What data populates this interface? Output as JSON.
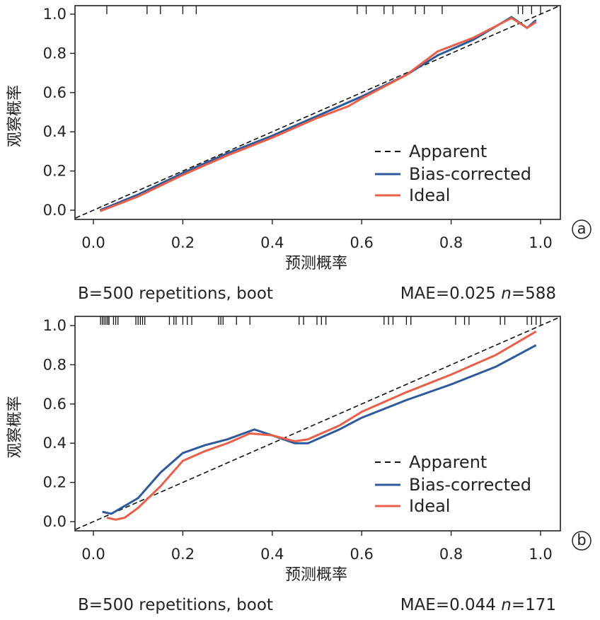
{
  "chart_data": [
    {
      "type": "line",
      "panel_label": "a",
      "xlabel": "预测概率",
      "ylabel": "观察概率",
      "xlim": [
        -0.04,
        1.04
      ],
      "ylim": [
        -0.03,
        1.06
      ],
      "xticks": [
        "0.0",
        "0.2",
        "0.4",
        "0.6",
        "0.8",
        "1.0"
      ],
      "yticks": [
        "0.0",
        "0.2",
        "0.4",
        "0.6",
        "0.8",
        "1.0"
      ],
      "legend": {
        "placement": "lower-right",
        "entries": [
          "Apparent",
          "Bias-corrected",
          "Ideal"
        ]
      },
      "footer_left": "B=500 repetitions, boot",
      "footer_right_prefix": "MAE=0.025 ",
      "footer_right_n": "n",
      "footer_right_suffix": "=588",
      "series": [
        {
          "name": "Apparent",
          "color": "#111111",
          "style": "dashed",
          "x": [
            -0.04,
            1.04
          ],
          "y": [
            -0.04,
            1.04
          ]
        },
        {
          "name": "Bias-corrected",
          "color": "#2e5a9c",
          "x": [
            0.015,
            0.1,
            0.2,
            0.3,
            0.4,
            0.5,
            0.6,
            0.7,
            0.77,
            0.85,
            0.935,
            0.97,
            0.99
          ],
          "y": [
            0.0,
            0.08,
            0.19,
            0.29,
            0.38,
            0.48,
            0.58,
            0.69,
            0.79,
            0.87,
            0.985,
            0.93,
            0.97
          ]
        },
        {
          "name": "Ideal",
          "color": "#e8604a",
          "x": [
            0.015,
            0.1,
            0.2,
            0.3,
            0.4,
            0.5,
            0.57,
            0.6,
            0.7,
            0.77,
            0.85,
            0.935,
            0.97,
            0.99
          ],
          "y": [
            -0.005,
            0.07,
            0.18,
            0.28,
            0.37,
            0.47,
            0.53,
            0.57,
            0.69,
            0.81,
            0.88,
            0.98,
            0.93,
            0.96
          ]
        }
      ],
      "rug": [
        0.03,
        0.12,
        0.15,
        0.2,
        0.23,
        0.59,
        0.61,
        0.65,
        0.67,
        0.72,
        0.74,
        0.78,
        0.95,
        0.96,
        0.98,
        1.0
      ]
    },
    {
      "type": "line",
      "panel_label": "b",
      "xlabel": "预测概率",
      "ylabel": "观察概率",
      "xlim": [
        -0.04,
        1.04
      ],
      "ylim": [
        -0.03,
        1.06
      ],
      "xticks": [
        "0.0",
        "0.2",
        "0.4",
        "0.6",
        "0.8",
        "1.0"
      ],
      "yticks": [
        "0.0",
        "0.2",
        "0.4",
        "0.6",
        "0.8",
        "1.0"
      ],
      "legend": {
        "placement": "lower-right",
        "entries": [
          "Apparent",
          "Bias-corrected",
          "Ideal"
        ]
      },
      "footer_left": "B=500 repetitions, boot",
      "footer_right_prefix": "MAE=0.044 ",
      "footer_right_n": "n",
      "footer_right_suffix": "=171",
      "series": [
        {
          "name": "Apparent",
          "color": "#111111",
          "style": "dashed",
          "x": [
            -0.04,
            1.04
          ],
          "y": [
            -0.04,
            1.04
          ]
        },
        {
          "name": "Bias-corrected",
          "color": "#2e5a9c",
          "x": [
            0.02,
            0.04,
            0.1,
            0.15,
            0.2,
            0.25,
            0.3,
            0.36,
            0.4,
            0.45,
            0.48,
            0.55,
            0.6,
            0.7,
            0.8,
            0.9,
            0.99
          ],
          "y": [
            0.05,
            0.04,
            0.12,
            0.25,
            0.35,
            0.39,
            0.42,
            0.47,
            0.44,
            0.4,
            0.4,
            0.47,
            0.53,
            0.62,
            0.7,
            0.79,
            0.9
          ]
        },
        {
          "name": "Ideal",
          "color": "#e8604a",
          "x": [
            0.03,
            0.05,
            0.07,
            0.1,
            0.15,
            0.2,
            0.25,
            0.3,
            0.35,
            0.4,
            0.45,
            0.48,
            0.55,
            0.6,
            0.7,
            0.8,
            0.9,
            0.99
          ],
          "y": [
            0.02,
            0.01,
            0.02,
            0.07,
            0.18,
            0.31,
            0.36,
            0.4,
            0.45,
            0.44,
            0.41,
            0.42,
            0.49,
            0.56,
            0.66,
            0.75,
            0.85,
            0.97
          ]
        }
      ],
      "rug": [
        0.016,
        0.02,
        0.024,
        0.028,
        0.032,
        0.035,
        0.045,
        0.05,
        0.055,
        0.095,
        0.1,
        0.105,
        0.11,
        0.115,
        0.17,
        0.18,
        0.185,
        0.2,
        0.21,
        0.22,
        0.28,
        0.285,
        0.29,
        0.32,
        0.35,
        0.46,
        0.47,
        0.5,
        0.51,
        0.52,
        0.65,
        0.66,
        0.67,
        0.7,
        0.71,
        0.81,
        0.83,
        0.84,
        0.91,
        0.92,
        0.97,
        0.98,
        0.99,
        1.0
      ]
    }
  ]
}
